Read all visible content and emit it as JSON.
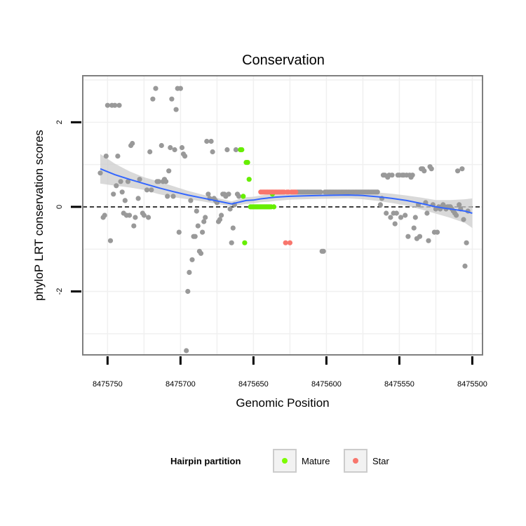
{
  "chart_data": {
    "type": "scatter",
    "title": "Conservation",
    "xlabel": "Genomic Position",
    "ylabel": "phyloP LRT conservation scores",
    "xlim": [
      8475767,
      8475493
    ],
    "x_reversed": true,
    "ylim": [
      -3.5,
      3.1
    ],
    "x_ticks": [
      8475750,
      8475700,
      8475650,
      8475600,
      8475550,
      8475500
    ],
    "x_tick_labels": [
      "8475750",
      "8475700",
      "8475650",
      "8475600",
      "8475550",
      "8475500"
    ],
    "y_ticks": [
      -2,
      0,
      2
    ],
    "y_tick_labels": [
      "-2",
      "0",
      "2"
    ],
    "grid": true,
    "reference_line": {
      "y": 0,
      "style": "dashed"
    },
    "legend": {
      "title": "Hairpin partition",
      "position": "bottom",
      "entries": [
        {
          "label": "Mature",
          "color": "#7CFC00"
        },
        {
          "label": "Star",
          "color": "#F8766D"
        }
      ]
    },
    "colors": {
      "other": "#999999",
      "Mature": "#66EE00",
      "Star": "#F8766D",
      "smooth": "#3366FF",
      "band": "#CCCCCC"
    },
    "series": [
      {
        "name": "other",
        "points": [
          [
            8475755,
            0.8
          ],
          [
            8475753,
            -0.25
          ],
          [
            8475752,
            -0.2
          ],
          [
            8475751,
            1.2
          ],
          [
            8475750,
            2.4
          ],
          [
            8475748,
            -0.8
          ],
          [
            8475747,
            2.4
          ],
          [
            8475746,
            0.3
          ],
          [
            8475745,
            2.4
          ],
          [
            8475744,
            0.5
          ],
          [
            8475743,
            1.2
          ],
          [
            8475742,
            2.4
          ],
          [
            8475741,
            0.6
          ],
          [
            8475740,
            0.35
          ],
          [
            8475739,
            -0.15
          ],
          [
            8475738,
            0.15
          ],
          [
            8475737,
            -0.2
          ],
          [
            8475736,
            0.6
          ],
          [
            8475735,
            -0.2
          ],
          [
            8475734,
            1.45
          ],
          [
            8475733,
            1.5
          ],
          [
            8475732,
            -0.45
          ],
          [
            8475731,
            -0.25
          ],
          [
            8475729,
            0.2
          ],
          [
            8475728,
            0.65
          ],
          [
            8475726,
            -0.15
          ],
          [
            8475725,
            -0.2
          ],
          [
            8475723,
            0.4
          ],
          [
            8475722,
            -0.25
          ],
          [
            8475721,
            1.3
          ],
          [
            8475720,
            0.4
          ],
          [
            8475719,
            2.55
          ],
          [
            8475717,
            2.8
          ],
          [
            8475716,
            0.6
          ],
          [
            8475715,
            0.6
          ],
          [
            8475713,
            1.45
          ],
          [
            8475712,
            0.6
          ],
          [
            8475711,
            0.65
          ],
          [
            8475710,
            0.6
          ],
          [
            8475709,
            0.25
          ],
          [
            8475708,
            0.85
          ],
          [
            8475707,
            1.4
          ],
          [
            8475706,
            2.55
          ],
          [
            8475705,
            0.25
          ],
          [
            8475704,
            1.35
          ],
          [
            8475703,
            2.3
          ],
          [
            8475702,
            2.8
          ],
          [
            8475701,
            -0.6
          ],
          [
            8475700,
            2.8
          ],
          [
            8475699,
            1.4
          ],
          [
            8475698,
            1.25
          ],
          [
            8475697,
            1.2
          ],
          [
            8475696,
            -3.4
          ],
          [
            8475695,
            -2
          ],
          [
            8475694,
            -1.55
          ],
          [
            8475693,
            0.15
          ],
          [
            8475692,
            -1.25
          ],
          [
            8475691,
            -0.7
          ],
          [
            8475690,
            -0.7
          ],
          [
            8475689,
            -0.1
          ],
          [
            8475688,
            -0.45
          ],
          [
            8475687,
            -1.05
          ],
          [
            8475686,
            -1.1
          ],
          [
            8475685,
            -0.6
          ],
          [
            8475684,
            -0.35
          ],
          [
            8475683,
            -0.25
          ],
          [
            8475682,
            1.55
          ],
          [
            8475681,
            0.3
          ],
          [
            8475680,
            0.2
          ],
          [
            8475679,
            1.55
          ],
          [
            8475678,
            1.3
          ],
          [
            8475677,
            0.2
          ],
          [
            8475676,
            0.15
          ],
          [
            8475675,
            0.1
          ],
          [
            8475674,
            -0.35
          ],
          [
            8475673,
            -0.3
          ],
          [
            8475672,
            -0.2
          ],
          [
            8475671,
            0.3
          ],
          [
            8475670,
            0.3
          ],
          [
            8475669,
            0.25
          ],
          [
            8475668,
            1.35
          ],
          [
            8475667,
            0.3
          ],
          [
            8475666,
            -0.05
          ],
          [
            8475665,
            -0.85
          ],
          [
            8475664,
            -0.5
          ],
          [
            8475663,
            0.05
          ],
          [
            8475662,
            1.35
          ],
          [
            8475661,
            0.3
          ],
          [
            8475660,
            0.25
          ],
          [
            8475620,
            0.35
          ],
          [
            8475619,
            0.35
          ],
          [
            8475618,
            0.35
          ],
          [
            8475617,
            0.35
          ],
          [
            8475616,
            0.35
          ],
          [
            8475615,
            0.35
          ],
          [
            8475614,
            0.35
          ],
          [
            8475613,
            0.35
          ],
          [
            8475612,
            0.35
          ],
          [
            8475611,
            0.35
          ],
          [
            8475610,
            0.35
          ],
          [
            8475609,
            0.35
          ],
          [
            8475608,
            0.35
          ],
          [
            8475607,
            0.35
          ],
          [
            8475606,
            0.35
          ],
          [
            8475605,
            0.35
          ],
          [
            8475604,
            0.35
          ],
          [
            8475603,
            -1.05
          ],
          [
            8475602,
            -1.05
          ],
          [
            8475601,
            0.35
          ],
          [
            8475600,
            0.35
          ],
          [
            8475599,
            0.35
          ],
          [
            8475598,
            0.35
          ],
          [
            8475597,
            0.35
          ],
          [
            8475596,
            0.35
          ],
          [
            8475595,
            0.35
          ],
          [
            8475594,
            0.35
          ],
          [
            8475593,
            0.35
          ],
          [
            8475592,
            0.35
          ],
          [
            8475591,
            0.35
          ],
          [
            8475590,
            0.35
          ],
          [
            8475589,
            0.35
          ],
          [
            8475588,
            0.35
          ],
          [
            8475587,
            0.35
          ],
          [
            8475586,
            0.35
          ],
          [
            8475585,
            0.35
          ],
          [
            8475584,
            0.35
          ],
          [
            8475583,
            0.35
          ],
          [
            8475582,
            0.35
          ],
          [
            8475581,
            0.35
          ],
          [
            8475580,
            0.35
          ],
          [
            8475579,
            0.35
          ],
          [
            8475578,
            0.35
          ],
          [
            8475577,
            0.35
          ],
          [
            8475576,
            0.35
          ],
          [
            8475575,
            0.35
          ],
          [
            8475574,
            0.35
          ],
          [
            8475573,
            0.35
          ],
          [
            8475572,
            0.35
          ],
          [
            8475571,
            0.35
          ],
          [
            8475570,
            0.35
          ],
          [
            8475569,
            0.35
          ],
          [
            8475568,
            0.35
          ],
          [
            8475567,
            0.35
          ],
          [
            8475566,
            0.35
          ],
          [
            8475565,
            0.35
          ],
          [
            8475563,
            0.05
          ],
          [
            8475562,
            0.2
          ],
          [
            8475561,
            0.75
          ],
          [
            8475560,
            0.75
          ],
          [
            8475559,
            -0.15
          ],
          [
            8475558,
            0.7
          ],
          [
            8475557,
            0.75
          ],
          [
            8475556,
            -0.25
          ],
          [
            8475555,
            0.75
          ],
          [
            8475554,
            -0.15
          ],
          [
            8475553,
            -0.4
          ],
          [
            8475552,
            -0.15
          ],
          [
            8475551,
            0.75
          ],
          [
            8475550,
            0.75
          ],
          [
            8475549,
            -0.25
          ],
          [
            8475548,
            0.75
          ],
          [
            8475547,
            0.75
          ],
          [
            8475546,
            -0.2
          ],
          [
            8475545,
            0.75
          ],
          [
            8475544,
            -0.7
          ],
          [
            8475543,
            0.75
          ],
          [
            8475542,
            0.7
          ],
          [
            8475541,
            0.75
          ],
          [
            8475540,
            -0.5
          ],
          [
            8475539,
            -0.25
          ],
          [
            8475538,
            -0.75
          ],
          [
            8475537,
            0.05
          ],
          [
            8475536,
            -0.7
          ],
          [
            8475535,
            0.9
          ],
          [
            8475534,
            0.9
          ],
          [
            8475533,
            0.85
          ],
          [
            8475532,
            0.1
          ],
          [
            8475531,
            -0.15
          ],
          [
            8475530,
            -0.8
          ],
          [
            8475529,
            0.95
          ],
          [
            8475528,
            0.9
          ],
          [
            8475527,
            0.05
          ],
          [
            8475526,
            -0.6
          ],
          [
            8475525,
            -0.05
          ],
          [
            8475524,
            -0.6
          ],
          [
            8475523,
            0
          ],
          [
            8475522,
            -0.05
          ],
          [
            8475521,
            0
          ],
          [
            8475520,
            0.05
          ],
          [
            8475519,
            0
          ],
          [
            8475518,
            -0.05
          ],
          [
            8475517,
            0
          ],
          [
            8475516,
            0
          ],
          [
            8475515,
            0
          ],
          [
            8475514,
            -0.05
          ],
          [
            8475513,
            -0.1
          ],
          [
            8475512,
            -0.15
          ],
          [
            8475511,
            -0.2
          ],
          [
            8475510,
            0.85
          ],
          [
            8475509,
            0.05
          ],
          [
            8475508,
            -0.05
          ],
          [
            8475507,
            0.9
          ],
          [
            8475506,
            -0.3
          ],
          [
            8475505,
            -1.4
          ],
          [
            8475504,
            -0.85
          ],
          [
            8475503,
            -0.1
          ]
        ]
      },
      {
        "name": "Mature",
        "points": [
          [
            8475659,
            1.35
          ],
          [
            8475658,
            1.35
          ],
          [
            8475657,
            0.25
          ],
          [
            8475656,
            -0.85
          ],
          [
            8475655,
            1.05
          ],
          [
            8475654,
            1.05
          ],
          [
            8475653,
            0.65
          ],
          [
            8475652,
            0
          ],
          [
            8475651,
            0
          ],
          [
            8475650,
            0
          ],
          [
            8475649,
            0
          ],
          [
            8475648,
            0
          ],
          [
            8475647,
            0
          ],
          [
            8475646,
            0
          ],
          [
            8475645,
            0
          ],
          [
            8475644,
            0
          ],
          [
            8475643,
            0
          ],
          [
            8475642,
            0
          ],
          [
            8475641,
            0
          ],
          [
            8475640,
            0
          ],
          [
            8475639,
            0
          ],
          [
            8475638,
            0
          ],
          [
            8475637,
            0.3
          ],
          [
            8475636,
            0
          ]
        ]
      },
      {
        "name": "Star",
        "points": [
          [
            8475645,
            0.35
          ],
          [
            8475644,
            0.35
          ],
          [
            8475643,
            0.35
          ],
          [
            8475642,
            0.35
          ],
          [
            8475641,
            0.35
          ],
          [
            8475640,
            0.35
          ],
          [
            8475639,
            0.35
          ],
          [
            8475638,
            0.35
          ],
          [
            8475637,
            0.35
          ],
          [
            8475636,
            0.35
          ],
          [
            8475635,
            0.35
          ],
          [
            8475634,
            0.35
          ],
          [
            8475633,
            0.35
          ],
          [
            8475632,
            0.35
          ],
          [
            8475631,
            0.35
          ],
          [
            8475630,
            0.35
          ],
          [
            8475629,
            0.35
          ],
          [
            8475628,
            -0.85
          ],
          [
            8475627,
            0.35
          ],
          [
            8475626,
            0.35
          ],
          [
            8475625,
            -0.85
          ],
          [
            8475624,
            0.35
          ],
          [
            8475623,
            0.35
          ],
          [
            8475622,
            0.35
          ],
          [
            8475621,
            0.35
          ]
        ]
      }
    ],
    "smooth": {
      "x": [
        8475755,
        8475745,
        8475735,
        8475725,
        8475715,
        8475705,
        8475695,
        8475685,
        8475675,
        8475665,
        8475655,
        8475650,
        8475645,
        8475640,
        8475635,
        8475625,
        8475615,
        8475605,
        8475595,
        8475585,
        8475575,
        8475565,
        8475555,
        8475545,
        8475535,
        8475525,
        8475515,
        8475505,
        8475500
      ],
      "y": [
        0.9,
        0.76,
        0.65,
        0.55,
        0.45,
        0.36,
        0.28,
        0.21,
        0.14,
        0.07,
        0.15,
        0.16,
        0.19,
        0.21,
        0.23,
        0.25,
        0.26,
        0.27,
        0.275,
        0.28,
        0.27,
        0.24,
        0.2,
        0.15,
        0.08,
        0.0,
        -0.05,
        -0.1,
        -0.15
      ],
      "upper": [
        1.25,
        1.02,
        0.84,
        0.7,
        0.6,
        0.49,
        0.38,
        0.29,
        0.21,
        0.13,
        0.23,
        0.24,
        0.27,
        0.3,
        0.32,
        0.33,
        0.34,
        0.35,
        0.355,
        0.36,
        0.36,
        0.34,
        0.31,
        0.27,
        0.22,
        0.16,
        0.16,
        0.18,
        0.2
      ],
      "lower": [
        0.55,
        0.5,
        0.46,
        0.4,
        0.3,
        0.23,
        0.18,
        0.13,
        0.07,
        0.01,
        0.07,
        0.08,
        0.11,
        0.12,
        0.14,
        0.17,
        0.18,
        0.19,
        0.195,
        0.2,
        0.18,
        0.14,
        0.09,
        0.03,
        -0.06,
        -0.16,
        -0.26,
        -0.38,
        -0.5
      ]
    }
  }
}
